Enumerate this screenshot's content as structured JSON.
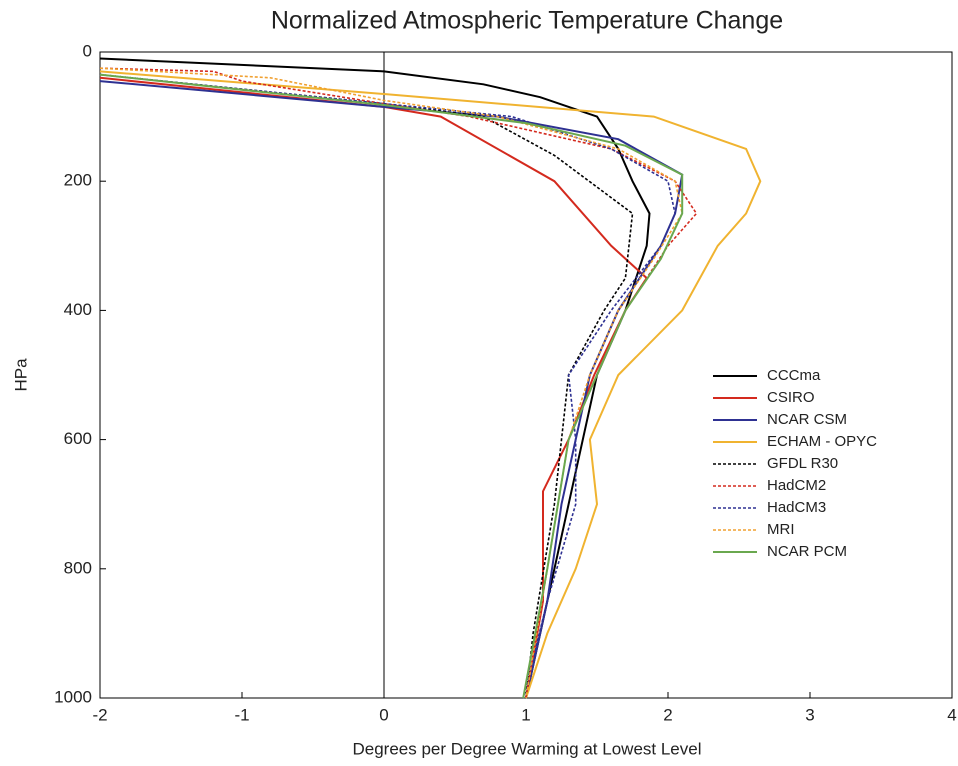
{
  "chart_data": {
    "type": "line",
    "title": "Normalized Atmospheric Temperature Change",
    "x_label": "Degrees per Degree Warming at Lowest Level",
    "y_label": "HPa",
    "xlim": [
      -2,
      4
    ],
    "xticks": [
      -2,
      -1,
      0,
      1,
      2,
      3,
      4
    ],
    "ylim": [
      0,
      1000
    ],
    "yticks": [
      0,
      200,
      400,
      600,
      800,
      1000
    ],
    "y_inverted": true,
    "legend": "right",
    "zero_line": true,
    "series": [
      {
        "name": "CCCma",
        "color": "#000000",
        "dash": false,
        "levels": [
          10,
          30,
          50,
          70,
          100,
          150,
          200,
          250,
          300,
          400,
          500,
          700,
          850,
          1000
        ],
        "values": [
          -2,
          0,
          0.7,
          1.1,
          1.5,
          1.65,
          1.75,
          1.87,
          1.85,
          1.7,
          1.5,
          1.3,
          1.15,
          1.0
        ]
      },
      {
        "name": "CSIRO",
        "color": "#d42a1e",
        "dash": false,
        "levels": [
          40,
          85,
          100,
          200,
          300,
          350,
          400,
          500,
          600,
          680,
          850,
          1000
        ],
        "values": [
          -2,
          0,
          0.4,
          1.2,
          1.6,
          1.85,
          1.7,
          1.48,
          1.3,
          1.12,
          1.12,
          1.0
        ]
      },
      {
        "name": "NCAR CSM",
        "color": "#2e3192",
        "dash": false,
        "levels": [
          45,
          85,
          100,
          135,
          190,
          250,
          300,
          400,
          500,
          700,
          850,
          1000
        ],
        "values": [
          -2,
          0,
          0.8,
          1.65,
          2.1,
          2.05,
          1.95,
          1.65,
          1.45,
          1.25,
          1.15,
          1.0
        ]
      },
      {
        "name": "ECHAM - OPYC",
        "color": "#f0b330",
        "dash": false,
        "levels": [
          30,
          65,
          100,
          150,
          200,
          250,
          300,
          400,
          500,
          600,
          700,
          800,
          900,
          1000
        ],
        "values": [
          -2,
          0,
          1.9,
          2.55,
          2.65,
          2.55,
          2.35,
          2.1,
          1.65,
          1.45,
          1.5,
          1.35,
          1.15,
          1.0
        ]
      },
      {
        "name": "GFDL R30",
        "color": "#000000",
        "dash": true,
        "levels": [
          35,
          80,
          100,
          160,
          250,
          350,
          400,
          500,
          600,
          700,
          900,
          1000
        ],
        "values": [
          -2,
          0,
          0.7,
          1.2,
          1.75,
          1.7,
          1.55,
          1.3,
          1.25,
          1.2,
          1.05,
          1.0
        ]
      },
      {
        "name": "HadCM2",
        "color": "#d42a1e",
        "dash": true,
        "levels": [
          25,
          30,
          45,
          80,
          100,
          150,
          200,
          250,
          300,
          400,
          500,
          600,
          800,
          1000
        ],
        "values": [
          -2,
          -1.2,
          -1,
          0,
          0.6,
          1.6,
          2.05,
          2.2,
          2.0,
          1.7,
          1.5,
          1.3,
          1.15,
          1.0
        ]
      },
      {
        "name": "HadCM3",
        "color": "#2e3192",
        "dash": true,
        "levels": [
          35,
          80,
          100,
          150,
          200,
          250,
          300,
          400,
          500,
          600,
          700,
          850,
          1000
        ],
        "values": [
          -2,
          0,
          0.9,
          1.6,
          2.0,
          2.05,
          1.95,
          1.6,
          1.3,
          1.35,
          1.35,
          1.15,
          0.98
        ]
      },
      {
        "name": "MRI",
        "color": "#f0a030",
        "dash": true,
        "levels": [
          25,
          40,
          75,
          100,
          150,
          200,
          250,
          320,
          400,
          500,
          600,
          800,
          1000
        ],
        "values": [
          -2,
          -0.8,
          0,
          0.8,
          1.65,
          2.05,
          2.1,
          1.9,
          1.65,
          1.45,
          1.3,
          1.15,
          1.0
        ]
      },
      {
        "name": "NCAR PCM",
        "color": "#6aa84f",
        "dash": false,
        "levels": [
          35,
          82,
          110,
          145,
          190,
          250,
          320,
          400,
          500,
          600,
          800,
          1000
        ],
        "values": [
          -2,
          0,
          1.0,
          1.7,
          2.1,
          2.1,
          1.95,
          1.7,
          1.5,
          1.3,
          1.15,
          0.98
        ]
      }
    ]
  }
}
